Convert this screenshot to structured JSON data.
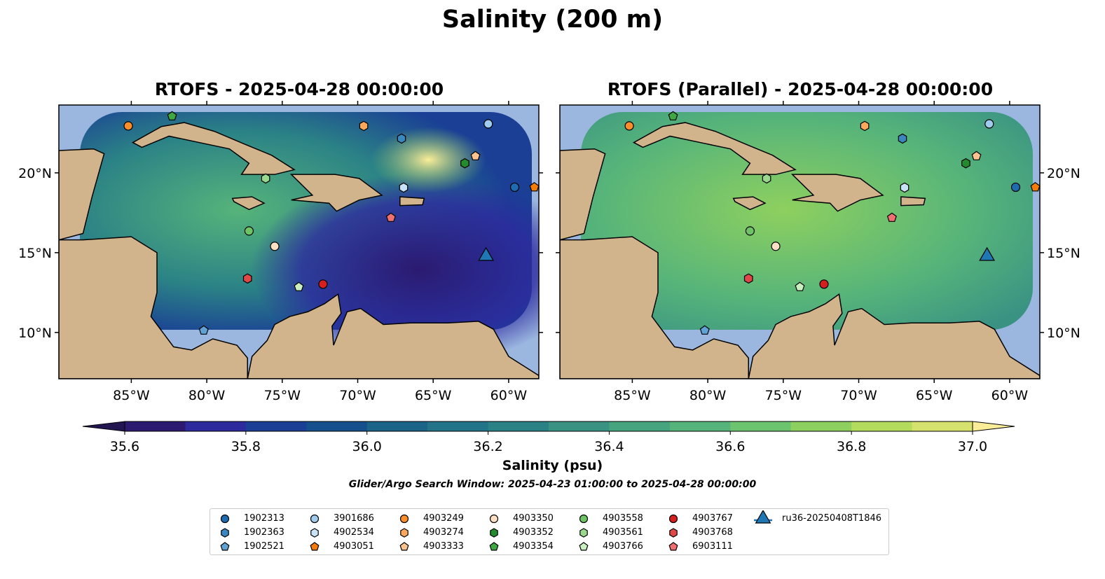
{
  "title": "Salinity (200 m)",
  "panels": [
    {
      "title": "RTOFS - 2025-04-28 00:00:00",
      "ocean_style": "variable"
    },
    {
      "title": "RTOFS (Parallel) - 2025-04-28 00:00:00",
      "ocean_style": "smooth"
    }
  ],
  "chart_data": {
    "type": "map-contour",
    "xlim": [
      -89.8,
      -58.0
    ],
    "ylim": [
      7.1,
      24.25
    ],
    "xticks": [
      -85,
      -80,
      -75,
      -70,
      -65,
      -60
    ],
    "xtick_labels": [
      "85°W",
      "80°W",
      "75°W",
      "70°W",
      "65°W",
      "60°W"
    ],
    "yticks": [
      10,
      15,
      20
    ],
    "ytick_labels": [
      "10°N",
      "15°N",
      "20°N"
    ],
    "colorbar": {
      "label": "Salinity (psu)",
      "min": 35.6,
      "max": 37.0,
      "step": 0.1,
      "tick_labels": [
        "35.6",
        "35.8",
        "36.0",
        "36.2",
        "36.4",
        "36.6",
        "36.8",
        "37.0"
      ],
      "colors": [
        "#2b1a70",
        "#2d2a9e",
        "#1a3f95",
        "#15508c",
        "#1b6488",
        "#237488",
        "#2b8286",
        "#3a9283",
        "#46a47f",
        "#56b47a",
        "#6cc46e",
        "#8ed05f",
        "#b3dc5c",
        "#d6e26e"
      ],
      "under": "#231552",
      "over": "#fbed98"
    },
    "markers": [
      {
        "id": "1902313",
        "shape": "circle",
        "color": "#1f6bb0",
        "lon": -59.6,
        "lat": 19.1
      },
      {
        "id": "1902363",
        "shape": "hexagon",
        "color": "#3a86c0",
        "lon": -67.1,
        "lat": 22.15
      },
      {
        "id": "1902521",
        "shape": "pentagon",
        "color": "#5fa2d6",
        "lon": -80.2,
        "lat": 10.13
      },
      {
        "id": "3901686",
        "shape": "circle",
        "color": "#9ecbee",
        "lon": -61.35,
        "lat": 23.07
      },
      {
        "id": "4902534",
        "shape": "hexagon",
        "color": "#c8e3f8",
        "lon": -66.96,
        "lat": 19.08
      },
      {
        "id": "4903051",
        "shape": "pentagon",
        "color": "#f57c0a",
        "lon": -58.3,
        "lat": 19.1
      },
      {
        "id": "4903249",
        "shape": "circle",
        "color": "#fb8d2b",
        "lon": -85.2,
        "lat": 22.94
      },
      {
        "id": "4903274",
        "shape": "hexagon",
        "color": "#fba75c",
        "lon": -69.6,
        "lat": 22.94
      },
      {
        "id": "4903333",
        "shape": "pentagon",
        "color": "#fdc38e",
        "lon": -62.2,
        "lat": 21.05
      },
      {
        "id": "4903350",
        "shape": "circle",
        "color": "#fde0c4",
        "lon": -75.5,
        "lat": 15.4
      },
      {
        "id": "4903352",
        "shape": "hexagon",
        "color": "#238b2e",
        "lon": -62.9,
        "lat": 20.6
      },
      {
        "id": "4903354",
        "shape": "pentagon",
        "color": "#3ea842",
        "lon": -82.3,
        "lat": 23.55
      },
      {
        "id": "4903558",
        "shape": "circle",
        "color": "#6cc464",
        "lon": -77.2,
        "lat": 16.36
      },
      {
        "id": "4903561",
        "shape": "hexagon",
        "color": "#9ad88e",
        "lon": -76.1,
        "lat": 19.65
      },
      {
        "id": "4903766",
        "shape": "pentagon",
        "color": "#caf0c0",
        "lon": -73.9,
        "lat": 12.85
      },
      {
        "id": "4903767",
        "shape": "circle",
        "color": "#d62020",
        "lon": -72.3,
        "lat": 13.03
      },
      {
        "id": "4903768",
        "shape": "hexagon",
        "color": "#e04848",
        "lon": -77.3,
        "lat": 13.38
      },
      {
        "id": "6903111",
        "shape": "pentagon",
        "color": "#ef7070",
        "lon": -67.8,
        "lat": 17.19
      },
      {
        "id": "ru36-20250408T1846",
        "shape": "triangle",
        "color": "#1f77b4",
        "lon": -61.5,
        "lat": 14.78
      }
    ]
  },
  "colorbar_label": "Salinity (psu)",
  "search_window": "Glider/Argo Search Window: 2025-04-23 01:00:00 to 2025-04-28 00:00:00"
}
